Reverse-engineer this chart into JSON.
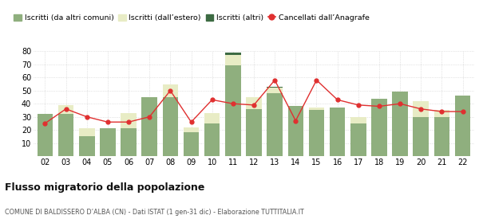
{
  "years": [
    "02",
    "03",
    "04",
    "05",
    "06",
    "07",
    "08",
    "09",
    "10",
    "11",
    "12",
    "13",
    "14",
    "15",
    "16",
    "17",
    "18",
    "19",
    "20",
    "21",
    "22"
  ],
  "iscritti_comuni": [
    32,
    32,
    15,
    21,
    21,
    45,
    45,
    18,
    25,
    69,
    36,
    48,
    38,
    35,
    37,
    25,
    44,
    49,
    30,
    30,
    46
  ],
  "iscritti_estero": [
    0,
    7,
    6,
    0,
    12,
    0,
    10,
    4,
    8,
    8,
    9,
    4,
    0,
    2,
    0,
    5,
    0,
    0,
    12,
    5,
    0
  ],
  "iscritti_altri": [
    0,
    0,
    0,
    0,
    0,
    0,
    0,
    0,
    0,
    2,
    0,
    1,
    0,
    0,
    0,
    0,
    0,
    0,
    0,
    0,
    0
  ],
  "cancellati": [
    25,
    36,
    30,
    26,
    26,
    30,
    50,
    26,
    43,
    40,
    39,
    58,
    27,
    58,
    43,
    39,
    38,
    40,
    36,
    34,
    34
  ],
  "color_comuni": "#8faf7e",
  "color_estero": "#e8ecc5",
  "color_altri": "#3d6b43",
  "color_cancellati": "#e03030",
  "bg_color": "#ffffff",
  "title": "Flusso migratorio della popolazione",
  "subtitle": "COMUNE DI BALDISSERO D’ALBA (CN) - Dati ISTAT (1 gen-31 dic) - Elaborazione TUTTITALIA.IT",
  "legend_labels": [
    "Iscritti (da altri comuni)",
    "Iscritti (dall’estero)",
    "Iscritti (altri)",
    "Cancellati dall’Anagrafe"
  ],
  "ylim": [
    0,
    80
  ],
  "yticks": [
    0,
    10,
    20,
    30,
    40,
    50,
    60,
    70,
    80
  ]
}
